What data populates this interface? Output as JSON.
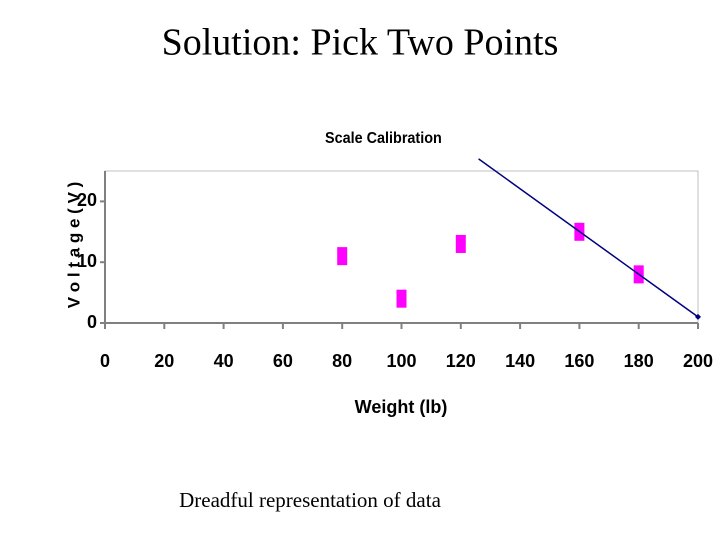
{
  "slide": {
    "title": "Solution:  Pick Two Points",
    "caption": "Dreadful representation of data"
  },
  "chart_data": {
    "type": "scatter",
    "title": "Scale Calibration",
    "x_label": "Weight (lb)",
    "y_label": "V o l t a g e  ( V )",
    "xlim": [
      0,
      200
    ],
    "xticks": [
      0,
      20,
      40,
      60,
      80,
      100,
      120,
      140,
      160,
      180,
      200
    ],
    "ylim": [
      0,
      25
    ],
    "yticks": [
      0,
      10,
      20
    ],
    "series": [
      {
        "mode": "markers",
        "color": "#ff00ff",
        "x": [
          80,
          100,
          120,
          160,
          180
        ],
        "values": [
          11,
          4,
          13,
          15,
          8
        ]
      },
      {
        "mode": "lines",
        "color": "#000080",
        "x": [
          126,
          200
        ],
        "values": [
          27,
          1
        ]
      }
    ]
  }
}
